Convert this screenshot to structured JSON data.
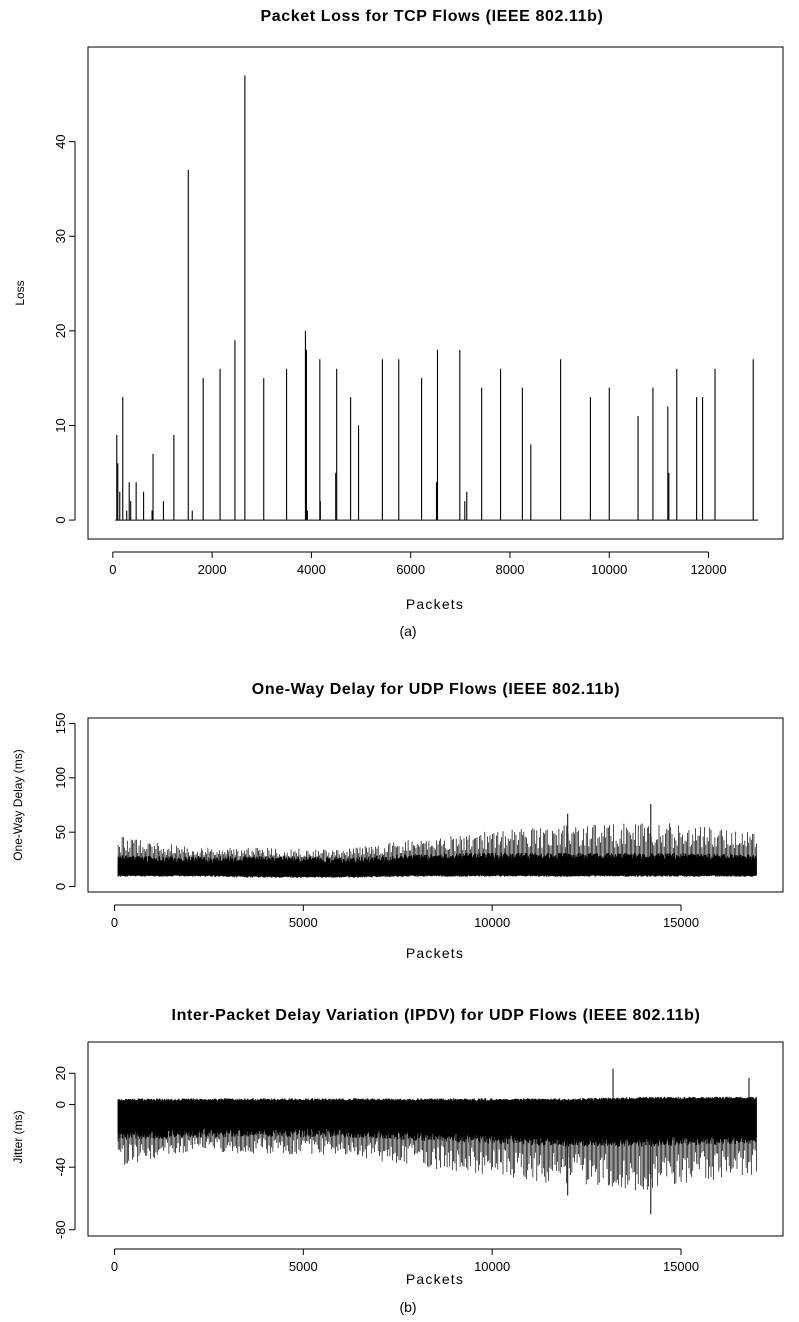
{
  "caption_a": "(a)",
  "caption_b": "(b)",
  "chart_data": [
    {
      "type": "line",
      "title": "Packet Loss for TCP Flows (IEEE 802.11b)",
      "xlabel": "Packets",
      "ylabel": "Loss",
      "xlim": [
        -500,
        13500
      ],
      "ylim": [
        -2,
        50
      ],
      "xticks": [
        0,
        2000,
        4000,
        6000,
        8000,
        10000,
        12000
      ],
      "yticks": [
        0,
        10,
        20,
        30,
        40
      ],
      "x_range": [
        50,
        13000
      ],
      "baseline": 0,
      "spikes": [
        [
          80,
          9
        ],
        [
          100,
          6
        ],
        [
          140,
          3
        ],
        [
          200,
          13
        ],
        [
          280,
          1
        ],
        [
          330,
          4
        ],
        [
          360,
          2
        ],
        [
          470,
          4
        ],
        [
          620,
          3
        ],
        [
          790,
          1
        ],
        [
          810,
          7
        ],
        [
          1020,
          2
        ],
        [
          1230,
          9
        ],
        [
          1520,
          37
        ],
        [
          1600,
          1
        ],
        [
          1820,
          15
        ],
        [
          2160,
          16
        ],
        [
          2460,
          19
        ],
        [
          2660,
          47
        ],
        [
          3040,
          15
        ],
        [
          3500,
          16
        ],
        [
          3880,
          20
        ],
        [
          3900,
          18
        ],
        [
          3920,
          1
        ],
        [
          4170,
          17
        ],
        [
          4180,
          2
        ],
        [
          4490,
          5
        ],
        [
          4510,
          16
        ],
        [
          4790,
          13
        ],
        [
          4950,
          10
        ],
        [
          5430,
          17
        ],
        [
          5760,
          17
        ],
        [
          6220,
          15
        ],
        [
          6520,
          4
        ],
        [
          6540,
          18
        ],
        [
          6990,
          18
        ],
        [
          7090,
          2
        ],
        [
          7130,
          3
        ],
        [
          7430,
          14
        ],
        [
          7810,
          16
        ],
        [
          8250,
          14
        ],
        [
          8420,
          8
        ],
        [
          9020,
          17
        ],
        [
          9620,
          13
        ],
        [
          10000,
          14
        ],
        [
          10580,
          11
        ],
        [
          10880,
          14
        ],
        [
          11180,
          12
        ],
        [
          11200,
          5
        ],
        [
          11360,
          16
        ],
        [
          11760,
          13
        ],
        [
          11880,
          13
        ],
        [
          12130,
          16
        ],
        [
          12900,
          17
        ]
      ]
    },
    {
      "type": "line",
      "title": "One-Way Delay for UDP Flows (IEEE 802.11b)",
      "xlabel": "Packets",
      "ylabel": "One-Way Delay (ms)",
      "xlim": [
        -700,
        17700
      ],
      "ylim": [
        -5,
        155
      ],
      "xticks": [
        0,
        5000,
        10000,
        15000
      ],
      "yticks": [
        0,
        50,
        100,
        150
      ],
      "x_range": [
        100,
        17000
      ],
      "trend": [
        [
          0,
          10,
          26,
          48
        ],
        [
          2000,
          10,
          25,
          36
        ],
        [
          4000,
          9,
          25,
          36
        ],
        [
          6000,
          9,
          24,
          34
        ],
        [
          8000,
          10,
          27,
          44
        ],
        [
          10000,
          10,
          28,
          52
        ],
        [
          12000,
          10,
          28,
          58
        ],
        [
          14000,
          10,
          28,
          60
        ],
        [
          17000,
          10,
          27,
          52
        ]
      ],
      "peaks": [
        [
          12000,
          67
        ],
        [
          14200,
          76
        ]
      ]
    },
    {
      "type": "line",
      "title": "Inter-Packet Delay Variation (IPDV) for UDP Flows (IEEE 802.11b)",
      "xlabel": "Packets",
      "ylabel": "Jitter (ms)",
      "xlim": [
        -700,
        17700
      ],
      "ylim": [
        -84,
        40
      ],
      "xticks": [
        0,
        5000,
        10000,
        15000
      ],
      "yticks": [
        20,
        0,
        -40,
        -80
      ],
      "ytick_labels": [
        "20",
        "0",
        "-40",
        "-80"
      ],
      "x_range": [
        100,
        17000
      ],
      "trend": [
        [
          0,
          3,
          -20,
          -40
        ],
        [
          2000,
          3,
          -18,
          -30
        ],
        [
          4000,
          3,
          -18,
          -32
        ],
        [
          6000,
          3,
          -18,
          -32
        ],
        [
          8000,
          3,
          -20,
          -40
        ],
        [
          10000,
          3,
          -22,
          -45
        ],
        [
          12000,
          3,
          -24,
          -52
        ],
        [
          14000,
          4,
          -24,
          -55
        ],
        [
          17000,
          4,
          -22,
          -45
        ]
      ],
      "peaks": [
        [
          13200,
          23
        ],
        [
          16800,
          17
        ],
        [
          12000,
          -58
        ],
        [
          14200,
          -70
        ]
      ]
    }
  ]
}
